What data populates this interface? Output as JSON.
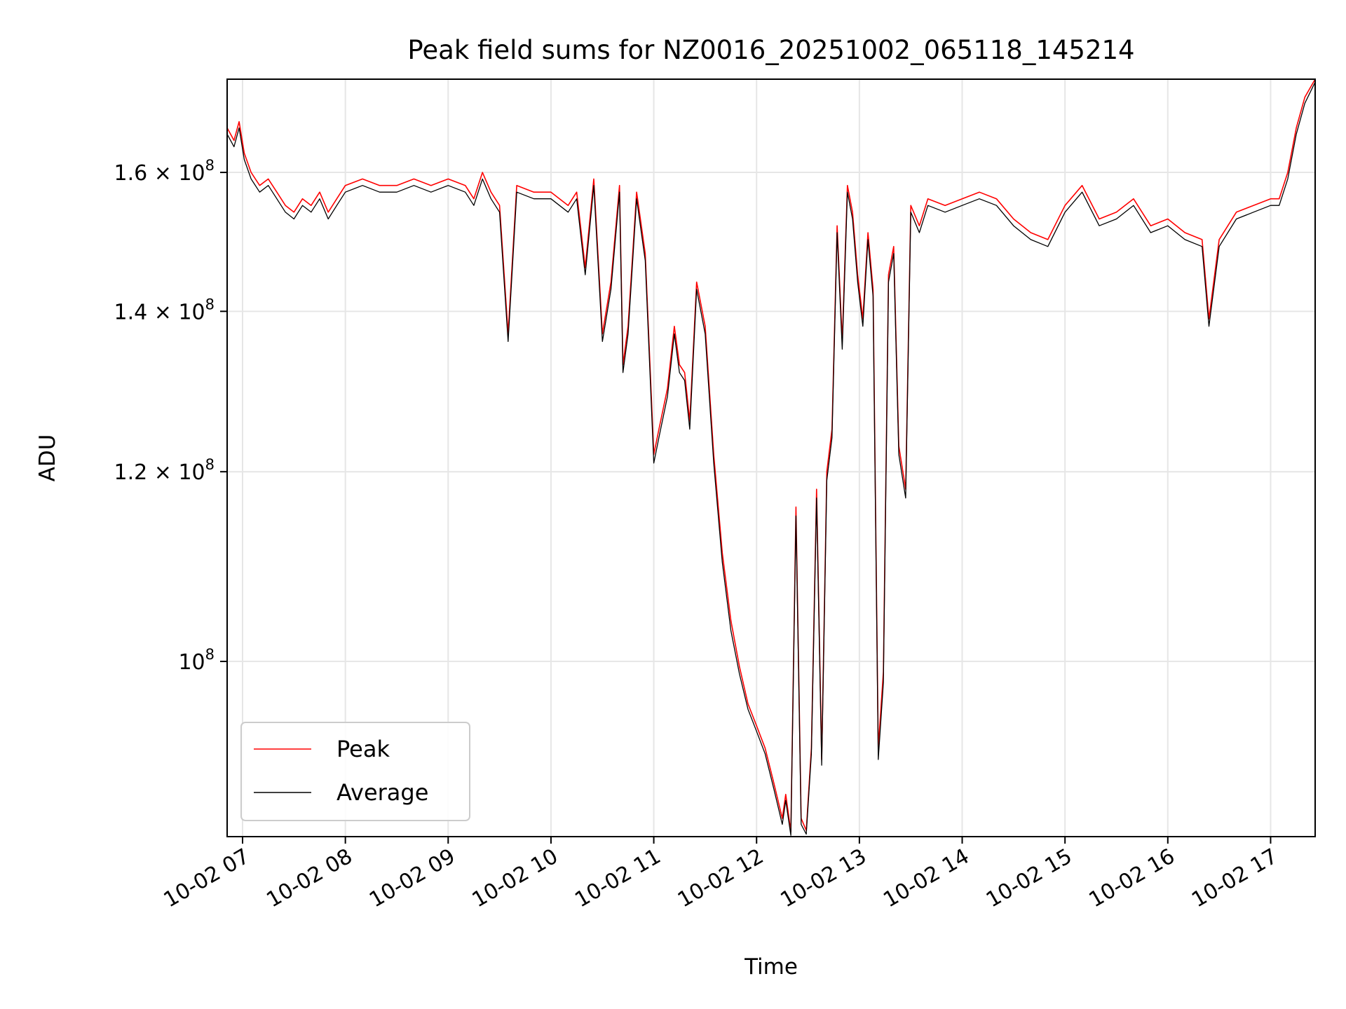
{
  "chart_data": {
    "type": "line",
    "title": "Peak field sums for NZ0016_20251002_065118_145214",
    "xlabel": "Time",
    "ylabel": "ADU",
    "x_ticks": [
      "10-02 07",
      "10-02 08",
      "10-02 09",
      "10-02 10",
      "10-02 11",
      "10-02 12",
      "10-02 13",
      "10-02 14",
      "10-02 15",
      "10-02 16",
      "10-02 17"
    ],
    "y_ticks": [
      {
        "value": 100000000,
        "base": "10",
        "exp": "8",
        "mantissa": ""
      },
      {
        "value": 120000000,
        "base": "1.2 × 10",
        "exp": "8",
        "mantissa": "1.2"
      },
      {
        "value": 140000000,
        "base": "1.4 × 10",
        "exp": "8",
        "mantissa": "1.4"
      },
      {
        "value": 160000000,
        "base": "1.6 × 10",
        "exp": "8",
        "mantissa": "1.6"
      }
    ],
    "y_scale": "log",
    "xlim": [
      "2025-10-02 06:51",
      "2025-10-02 17:26"
    ],
    "ylim": [
      84500000,
      175000000
    ],
    "grid": true,
    "legend_position": "lower-left",
    "x": [
      "2025-10-02 06:51",
      "2025-10-02 06:55",
      "2025-10-02 06:58",
      "2025-10-02 07:01",
      "2025-10-02 07:05",
      "2025-10-02 07:10",
      "2025-10-02 07:15",
      "2025-10-02 07:20",
      "2025-10-02 07:25",
      "2025-10-02 07:30",
      "2025-10-02 07:35",
      "2025-10-02 07:40",
      "2025-10-02 07:45",
      "2025-10-02 07:50",
      "2025-10-02 07:55",
      "2025-10-02 08:00",
      "2025-10-02 08:10",
      "2025-10-02 08:20",
      "2025-10-02 08:30",
      "2025-10-02 08:40",
      "2025-10-02 08:50",
      "2025-10-02 09:00",
      "2025-10-02 09:10",
      "2025-10-02 09:15",
      "2025-10-02 09:20",
      "2025-10-02 09:25",
      "2025-10-02 09:30",
      "2025-10-02 09:35",
      "2025-10-02 09:40",
      "2025-10-02 09:50",
      "2025-10-02 10:00",
      "2025-10-02 10:10",
      "2025-10-02 10:15",
      "2025-10-02 10:20",
      "2025-10-02 10:25",
      "2025-10-02 10:30",
      "2025-10-02 10:35",
      "2025-10-02 10:40",
      "2025-10-02 10:42",
      "2025-10-02 10:45",
      "2025-10-02 10:50",
      "2025-10-02 10:55",
      "2025-10-02 11:00",
      "2025-10-02 11:03",
      "2025-10-02 11:08",
      "2025-10-02 11:12",
      "2025-10-02 11:15",
      "2025-10-02 11:18",
      "2025-10-02 11:21",
      "2025-10-02 11:25",
      "2025-10-02 11:30",
      "2025-10-02 11:35",
      "2025-10-02 11:40",
      "2025-10-02 11:45",
      "2025-10-02 11:50",
      "2025-10-02 11:55",
      "2025-10-02 12:00",
      "2025-10-02 12:05",
      "2025-10-02 12:10",
      "2025-10-02 12:15",
      "2025-10-02 12:17",
      "2025-10-02 12:20",
      "2025-10-02 12:23",
      "2025-10-02 12:26",
      "2025-10-02 12:29",
      "2025-10-02 12:32",
      "2025-10-02 12:35",
      "2025-10-02 12:38",
      "2025-10-02 12:41",
      "2025-10-02 12:44",
      "2025-10-02 12:47",
      "2025-10-02 12:50",
      "2025-10-02 12:53",
      "2025-10-02 12:56",
      "2025-10-02 12:59",
      "2025-10-02 13:02",
      "2025-10-02 13:05",
      "2025-10-02 13:08",
      "2025-10-02 13:11",
      "2025-10-02 13:14",
      "2025-10-02 13:17",
      "2025-10-02 13:20",
      "2025-10-02 13:23",
      "2025-10-02 13:27",
      "2025-10-02 13:30",
      "2025-10-02 13:35",
      "2025-10-02 13:40",
      "2025-10-02 13:50",
      "2025-10-02 14:00",
      "2025-10-02 14:10",
      "2025-10-02 14:20",
      "2025-10-02 14:30",
      "2025-10-02 14:40",
      "2025-10-02 14:50",
      "2025-10-02 15:00",
      "2025-10-02 15:10",
      "2025-10-02 15:20",
      "2025-10-02 15:30",
      "2025-10-02 15:40",
      "2025-10-02 15:50",
      "2025-10-02 16:00",
      "2025-10-02 16:10",
      "2025-10-02 16:20",
      "2025-10-02 16:24",
      "2025-10-02 16:30",
      "2025-10-02 16:40",
      "2025-10-02 16:50",
      "2025-10-02 17:00",
      "2025-10-02 17:05",
      "2025-10-02 17:10",
      "2025-10-02 17:15",
      "2025-10-02 17:20",
      "2025-10-02 17:26"
    ],
    "series": [
      {
        "name": "Peak",
        "color": "#ff0000",
        "values": [
          167000000,
          165000000,
          168000000,
          163000000,
          160000000,
          158000000,
          159000000,
          157000000,
          155000000,
          154000000,
          156000000,
          155000000,
          157000000,
          154000000,
          156000000,
          158000000,
          159000000,
          158000000,
          158000000,
          159000000,
          158000000,
          159000000,
          158000000,
          156000000,
          160000000,
          157000000,
          155000000,
          137000000,
          158000000,
          157000000,
          157000000,
          155000000,
          157000000,
          146000000,
          159000000,
          137000000,
          144000000,
          158000000,
          133000000,
          138000000,
          157000000,
          148000000,
          122000000,
          125000000,
          130000000,
          138000000,
          133000000,
          132000000,
          126000000,
          144000000,
          138000000,
          122000000,
          111000000,
          104000000,
          99500000,
          96000000,
          94000000,
          92000000,
          89000000,
          86000000,
          88000000,
          84900000,
          116000000,
          86000000,
          85000000,
          92000000,
          118000000,
          91000000,
          120000000,
          125000000,
          152000000,
          136000000,
          158000000,
          154000000,
          145000000,
          139000000,
          151000000,
          143000000,
          92000000,
          99000000,
          145000000,
          149000000,
          123000000,
          118000000,
          155000000,
          152000000,
          156000000,
          155000000,
          156000000,
          157000000,
          156000000,
          153000000,
          151000000,
          150000000,
          155000000,
          158000000,
          153000000,
          154000000,
          156000000,
          152000000,
          153000000,
          151000000,
          150000000,
          139000000,
          150000000,
          154000000,
          155000000,
          156000000,
          156000000,
          160000000,
          167000000,
          172000000,
          175000000
        ]
      },
      {
        "name": "Average",
        "color": "#000000",
        "values": [
          166000000,
          164000000,
          167000000,
          162000000,
          159000000,
          157000000,
          158000000,
          156000000,
          154000000,
          153000000,
          155000000,
          154000000,
          156000000,
          153000000,
          155000000,
          157000000,
          158000000,
          157000000,
          157000000,
          158000000,
          157000000,
          158000000,
          157000000,
          155000000,
          159000000,
          156000000,
          154000000,
          136000000,
          157000000,
          156000000,
          156000000,
          154000000,
          156000000,
          145000000,
          158000000,
          136000000,
          143000000,
          157000000,
          132000000,
          137000000,
          156000000,
          147000000,
          121000000,
          124000000,
          129000000,
          137000000,
          132000000,
          131000000,
          125000000,
          143000000,
          137000000,
          121000000,
          110000000,
          103000000,
          98800000,
          95500000,
          93500000,
          91500000,
          88500000,
          85500000,
          87500000,
          84600000,
          115000000,
          85500000,
          84700000,
          91500000,
          117000000,
          90500000,
          119000000,
          124000000,
          151000000,
          135000000,
          157000000,
          153000000,
          144000000,
          138000000,
          150000000,
          142000000,
          91000000,
          98000000,
          144000000,
          148000000,
          122000000,
          117000000,
          154000000,
          151000000,
          155000000,
          154000000,
          155000000,
          156000000,
          155000000,
          152000000,
          150000000,
          149000000,
          154000000,
          157000000,
          152000000,
          153000000,
          155000000,
          151000000,
          152000000,
          150000000,
          149000000,
          138000000,
          149000000,
          153000000,
          154000000,
          155000000,
          155000000,
          159000000,
          166000000,
          171000000,
          174500000
        ]
      }
    ]
  }
}
